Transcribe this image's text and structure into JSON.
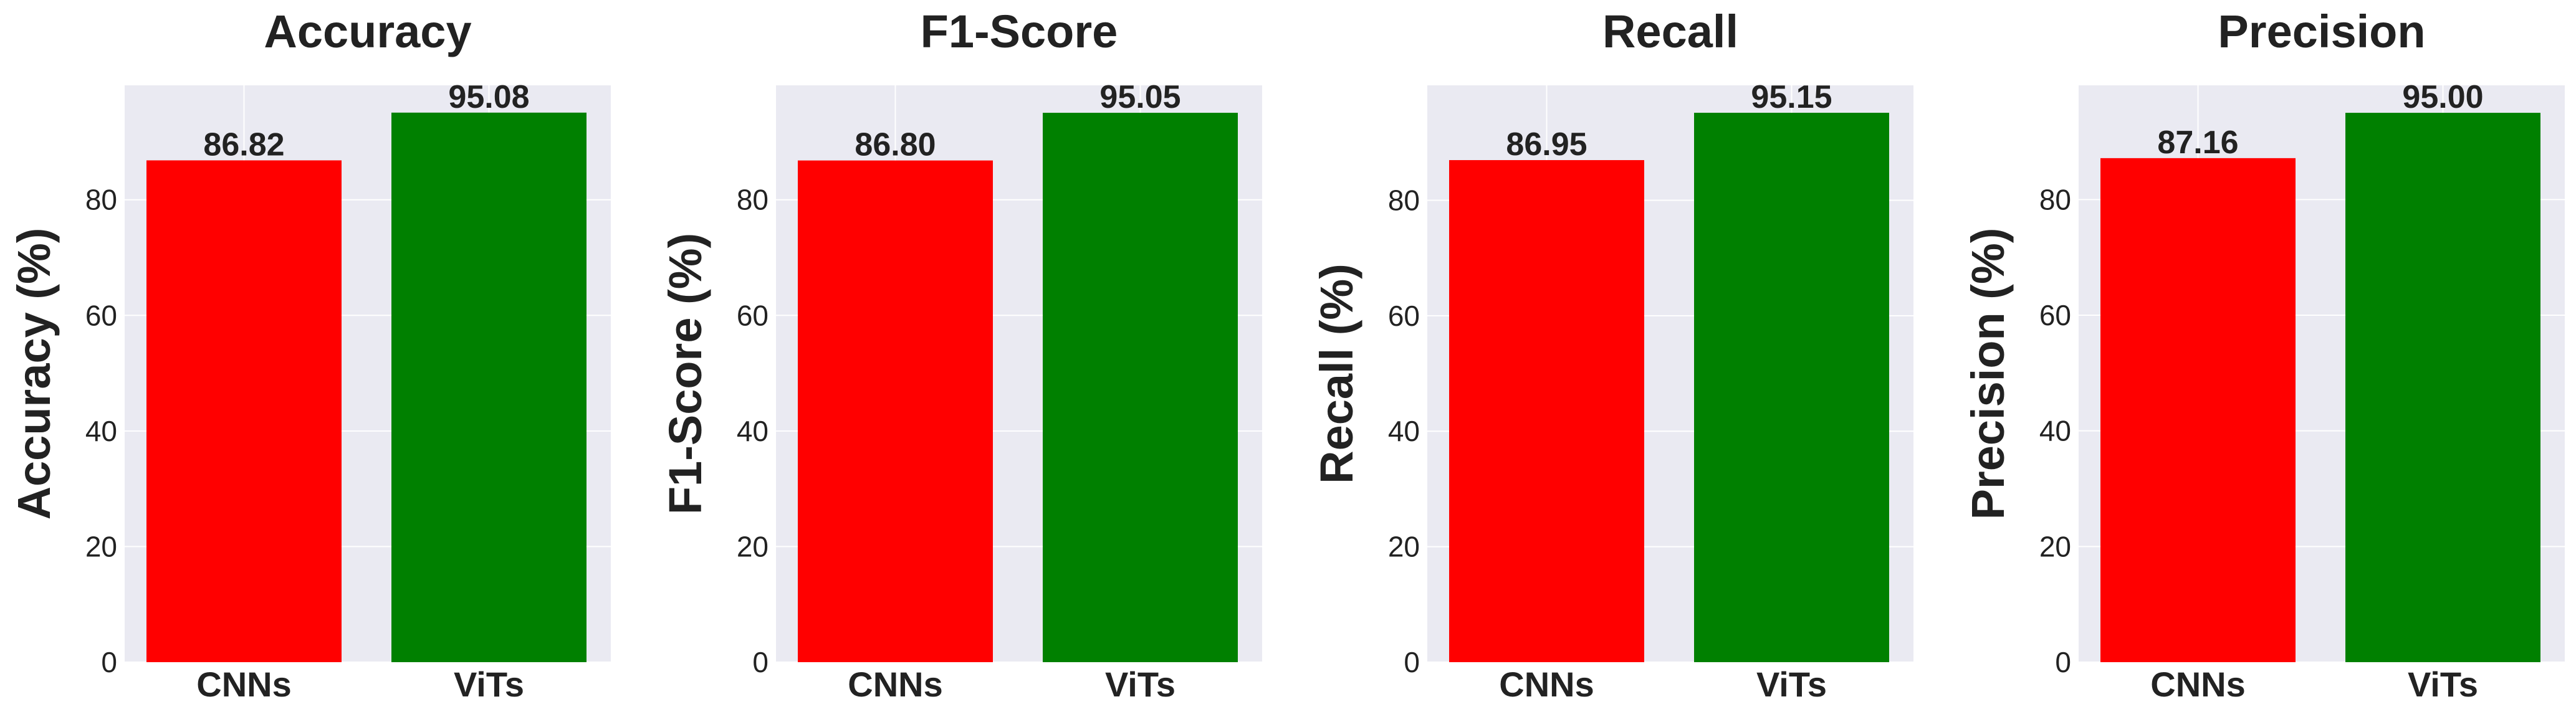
{
  "colors": {
    "plot_background": "#eaeaf2",
    "grid": "#ffffff",
    "text": "#222222"
  },
  "chart_data": [
    {
      "type": "bar",
      "title": "Accuracy",
      "ylabel": "Accuracy (%)",
      "xlabel": "",
      "categories": [
        "CNNs",
        "ViTs"
      ],
      "values": [
        86.82,
        95.08
      ],
      "value_labels": [
        "86.82",
        "95.08"
      ],
      "bar_colors": [
        "#ff0000",
        "#008000"
      ],
      "ylim": [
        0,
        99.8
      ],
      "yticks": [
        0,
        20,
        40,
        60,
        80
      ],
      "grid": true,
      "legend": "none"
    },
    {
      "type": "bar",
      "title": "F1-Score",
      "ylabel": "F1-Score (%)",
      "xlabel": "",
      "categories": [
        "CNNs",
        "ViTs"
      ],
      "values": [
        86.8,
        95.05
      ],
      "value_labels": [
        "86.80",
        "95.05"
      ],
      "bar_colors": [
        "#ff0000",
        "#008000"
      ],
      "ylim": [
        0,
        99.8
      ],
      "yticks": [
        0,
        20,
        40,
        60,
        80
      ],
      "grid": true,
      "legend": "none"
    },
    {
      "type": "bar",
      "title": "Recall",
      "ylabel": "Recall (%)",
      "xlabel": "",
      "categories": [
        "CNNs",
        "ViTs"
      ],
      "values": [
        86.95,
        95.15
      ],
      "value_labels": [
        "86.95",
        "95.15"
      ],
      "bar_colors": [
        "#ff0000",
        "#008000"
      ],
      "ylim": [
        0,
        99.9
      ],
      "yticks": [
        0,
        20,
        40,
        60,
        80
      ],
      "grid": true,
      "legend": "none"
    },
    {
      "type": "bar",
      "title": "Precision",
      "ylabel": "Precision (%)",
      "xlabel": "",
      "categories": [
        "CNNs",
        "ViTs"
      ],
      "values": [
        87.16,
        95.0
      ],
      "value_labels": [
        "87.16",
        "95.00"
      ],
      "bar_colors": [
        "#ff0000",
        "#008000"
      ],
      "ylim": [
        0,
        99.75
      ],
      "yticks": [
        0,
        20,
        40,
        60,
        80
      ],
      "grid": true,
      "legend": "none"
    }
  ]
}
